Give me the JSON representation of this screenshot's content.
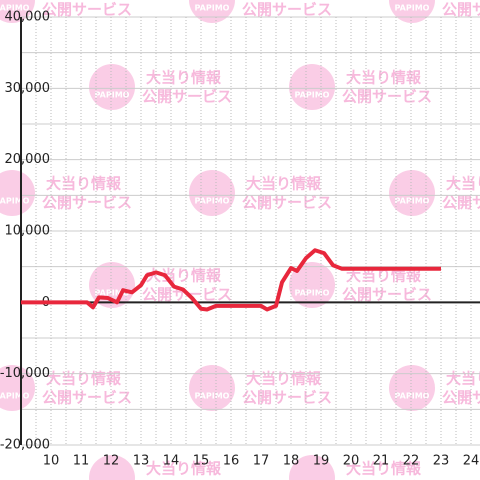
{
  "chart_data": {
    "type": "line",
    "watermark": {
      "logo": "PAPIMO",
      "lines": [
        "大当り情報",
        "公開サービス"
      ]
    },
    "x": [
      9,
      11.2,
      11.4,
      11.6,
      11.9,
      12.2,
      12.4,
      12.7,
      13.0,
      13.2,
      13.5,
      13.8,
      14.1,
      14.4,
      14.7,
      15.0,
      15.2,
      15.5,
      16.0,
      17.0,
      17.2,
      17.5,
      17.7,
      18.0,
      18.2,
      18.5,
      18.8,
      19.1,
      19.4,
      19.7,
      20.0,
      23.0
    ],
    "series": [
      {
        "color": "#e8273c",
        "values": [
          0,
          0,
          -700,
          700,
          600,
          0,
          1700,
          1400,
          2400,
          3800,
          4200,
          3800,
          2200,
          1800,
          600,
          -900,
          -1000,
          -500,
          -500,
          -500,
          -1000,
          -500,
          2800,
          4800,
          4400,
          6200,
          7300,
          6900,
          5200,
          4700,
          4700,
          4700
        ]
      }
    ],
    "xlim": [
      9,
      24.3
    ],
    "xticks": [
      10,
      11,
      12,
      13,
      14,
      15,
      16,
      17,
      18,
      19,
      20,
      21,
      22,
      23,
      24
    ],
    "xminor": [
      9.5,
      10.5,
      11.5,
      12.5,
      13.5,
      14.5,
      15.5,
      16.5,
      17.5,
      18.5,
      19.5,
      20.5,
      21.5,
      22.5,
      23.5
    ],
    "ylim": [
      -20000,
      40000
    ],
    "yticks": [
      {
        "value": 40000,
        "label": "40,000"
      },
      {
        "value": 30000,
        "label": "30,000"
      },
      {
        "value": 20000,
        "label": "20,000"
      },
      {
        "value": 10000,
        "label": "10,000"
      },
      0,
      {
        "value": -10000,
        "label": "-10,000"
      },
      {
        "value": -20000,
        "label": "-20,000"
      }
    ],
    "yminor": [
      35000,
      25000,
      15000,
      5000,
      -5000,
      -15000
    ],
    "grid": true
  }
}
